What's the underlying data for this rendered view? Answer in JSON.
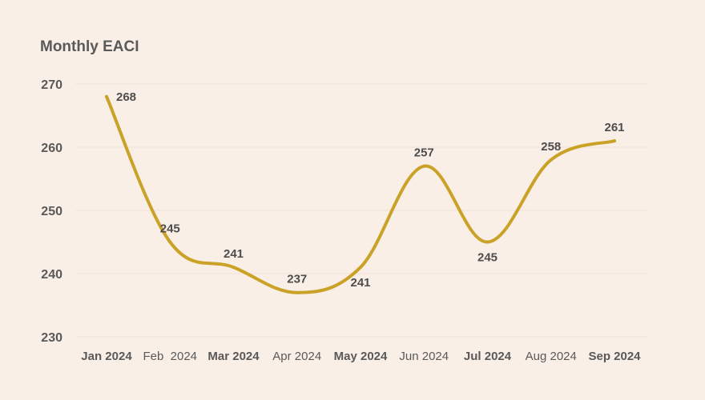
{
  "chart_data": {
    "type": "line",
    "title": "Monthly EACI",
    "xlabel": "",
    "ylabel": "",
    "categories": [
      "Jan 2024",
      "Feb  2024",
      "Mar 2024",
      "Apr 2024",
      "May 2024",
      "Jun 2024",
      "Jul 2024",
      "Aug 2024",
      "Sep 2024"
    ],
    "bold_categories": [
      true,
      false,
      true,
      false,
      true,
      false,
      true,
      false,
      true
    ],
    "series": [
      {
        "values": [
          268,
          245,
          241,
          237,
          241,
          257,
          245,
          258,
          261
        ]
      }
    ],
    "data_labels": [
      "268",
      "245",
      "241",
      "237",
      "241",
      "257",
      "245",
      "258",
      "261"
    ],
    "label_positions": [
      "right",
      "above",
      "above",
      "above",
      "below",
      "above",
      "below",
      "above",
      "above"
    ],
    "ylim": [
      230,
      270
    ],
    "yticks": [
      "230",
      "240",
      "250",
      "260",
      "270"
    ],
    "grid": true,
    "line_color": "#c9a227",
    "background_color": "#faefe6"
  }
}
